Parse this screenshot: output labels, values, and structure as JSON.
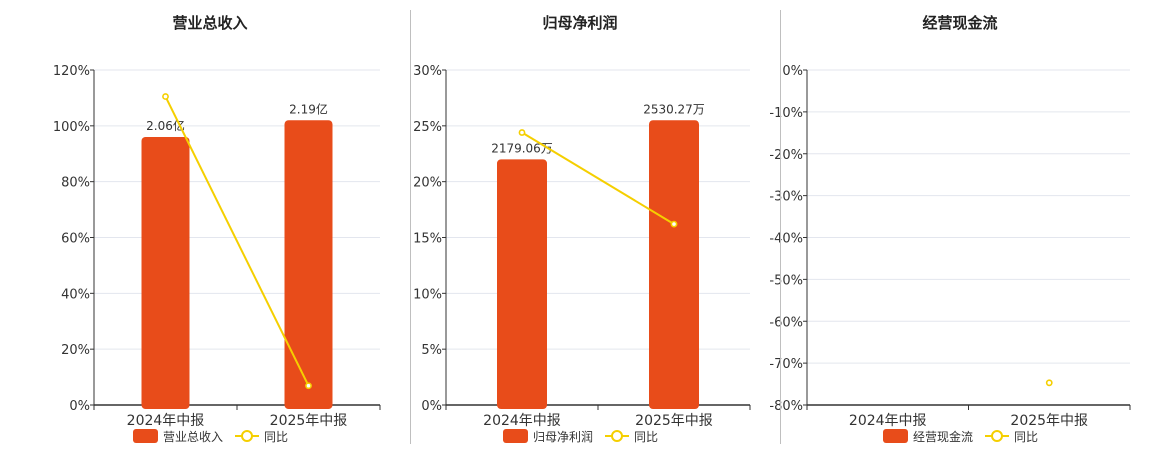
{
  "colors": {
    "bar": "#e84c1a",
    "line": "#f5cf00",
    "grid": "#e3e6ee",
    "axis": "#333333",
    "text": "#333333",
    "title": "#222222"
  },
  "chart_data": [
    {
      "type": "bar",
      "title": "营业总收入",
      "categories": [
        "2024年中报",
        "2025年中报"
      ],
      "ylim": [
        0,
        120
      ],
      "ytick_labels": [
        "0%",
        "20%",
        "40%",
        "60%",
        "80%",
        "100%",
        "120%"
      ],
      "ytick_values": [
        0,
        20,
        40,
        60,
        80,
        100,
        120
      ],
      "series": [
        {
          "name": "营业总收入",
          "kind": "bar",
          "values": [
            96,
            102
          ],
          "labels": [
            "2.06亿",
            "2.19亿"
          ]
        },
        {
          "name": "同比",
          "kind": "line",
          "values": [
            110.5,
            6.9
          ]
        }
      ],
      "legend": "bottom",
      "grid": true
    },
    {
      "type": "bar",
      "title": "归母净利润",
      "categories": [
        "2024年中报",
        "2025年中报"
      ],
      "ylim": [
        0,
        30
      ],
      "ytick_labels": [
        "0%",
        "5%",
        "10%",
        "15%",
        "20%",
        "25%",
        "30%"
      ],
      "ytick_values": [
        0,
        5,
        10,
        15,
        20,
        25,
        30
      ],
      "series": [
        {
          "name": "归母净利润",
          "kind": "bar",
          "values": [
            22,
            25.5
          ],
          "labels": [
            "2179.06万",
            "2530.27万"
          ]
        },
        {
          "name": "同比",
          "kind": "line",
          "values": [
            24.4,
            16.2
          ]
        }
      ],
      "legend": "bottom",
      "grid": true
    },
    {
      "type": "bar",
      "title": "经营现金流",
      "categories": [
        "2024年中报",
        "2025年中报"
      ],
      "ylim": [
        -80,
        0
      ],
      "ytick_labels": [
        "-80%",
        "-70%",
        "-60%",
        "-50%",
        "-40%",
        "-30%",
        "-20%",
        "-10%",
        "0%"
      ],
      "ytick_values": [
        -80,
        -70,
        -60,
        -50,
        -40,
        -30,
        -20,
        -10,
        0
      ],
      "series": [
        {
          "name": "经营现金流",
          "kind": "bar",
          "values": [
            null,
            null
          ],
          "labels": [
            "",
            ""
          ]
        },
        {
          "name": "同比",
          "kind": "line",
          "values": [
            null,
            -74.7
          ]
        }
      ],
      "legend": "bottom",
      "grid": true
    }
  ]
}
